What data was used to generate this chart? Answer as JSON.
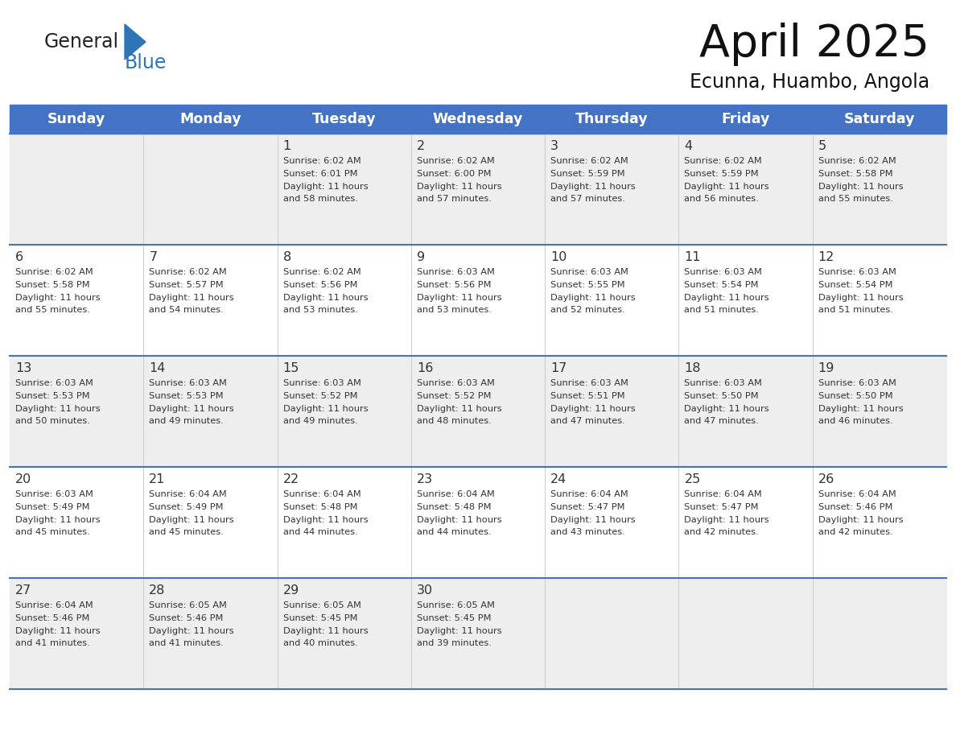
{
  "title": "April 2025",
  "subtitle": "Ecunna, Huambo, Angola",
  "days_of_week": [
    "Sunday",
    "Monday",
    "Tuesday",
    "Wednesday",
    "Thursday",
    "Friday",
    "Saturday"
  ],
  "header_bg": "#4472C4",
  "header_text": "#FFFFFF",
  "cell_bg_odd": "#EEEEEE",
  "cell_bg_even": "#FFFFFF",
  "text_color": "#333333",
  "line_color": "#4472C4",
  "logo_general_color": "#222222",
  "logo_blue_color": "#2E75B6",
  "calendar_data": [
    [
      {
        "day": "",
        "sunrise": "",
        "sunset": "",
        "daylight": ""
      },
      {
        "day": "",
        "sunrise": "",
        "sunset": "",
        "daylight": ""
      },
      {
        "day": "1",
        "sunrise": "6:02 AM",
        "sunset": "6:01 PM",
        "daylight": "11 hours and 58 minutes."
      },
      {
        "day": "2",
        "sunrise": "6:02 AM",
        "sunset": "6:00 PM",
        "daylight": "11 hours and 57 minutes."
      },
      {
        "day": "3",
        "sunrise": "6:02 AM",
        "sunset": "5:59 PM",
        "daylight": "11 hours and 57 minutes."
      },
      {
        "day": "4",
        "sunrise": "6:02 AM",
        "sunset": "5:59 PM",
        "daylight": "11 hours and 56 minutes."
      },
      {
        "day": "5",
        "sunrise": "6:02 AM",
        "sunset": "5:58 PM",
        "daylight": "11 hours and 55 minutes."
      }
    ],
    [
      {
        "day": "6",
        "sunrise": "6:02 AM",
        "sunset": "5:58 PM",
        "daylight": "11 hours and 55 minutes."
      },
      {
        "day": "7",
        "sunrise": "6:02 AM",
        "sunset": "5:57 PM",
        "daylight": "11 hours and 54 minutes."
      },
      {
        "day": "8",
        "sunrise": "6:02 AM",
        "sunset": "5:56 PM",
        "daylight": "11 hours and 53 minutes."
      },
      {
        "day": "9",
        "sunrise": "6:03 AM",
        "sunset": "5:56 PM",
        "daylight": "11 hours and 53 minutes."
      },
      {
        "day": "10",
        "sunrise": "6:03 AM",
        "sunset": "5:55 PM",
        "daylight": "11 hours and 52 minutes."
      },
      {
        "day": "11",
        "sunrise": "6:03 AM",
        "sunset": "5:54 PM",
        "daylight": "11 hours and 51 minutes."
      },
      {
        "day": "12",
        "sunrise": "6:03 AM",
        "sunset": "5:54 PM",
        "daylight": "11 hours and 51 minutes."
      }
    ],
    [
      {
        "day": "13",
        "sunrise": "6:03 AM",
        "sunset": "5:53 PM",
        "daylight": "11 hours and 50 minutes."
      },
      {
        "day": "14",
        "sunrise": "6:03 AM",
        "sunset": "5:53 PM",
        "daylight": "11 hours and 49 minutes."
      },
      {
        "day": "15",
        "sunrise": "6:03 AM",
        "sunset": "5:52 PM",
        "daylight": "11 hours and 49 minutes."
      },
      {
        "day": "16",
        "sunrise": "6:03 AM",
        "sunset": "5:52 PM",
        "daylight": "11 hours and 48 minutes."
      },
      {
        "day": "17",
        "sunrise": "6:03 AM",
        "sunset": "5:51 PM",
        "daylight": "11 hours and 47 minutes."
      },
      {
        "day": "18",
        "sunrise": "6:03 AM",
        "sunset": "5:50 PM",
        "daylight": "11 hours and 47 minutes."
      },
      {
        "day": "19",
        "sunrise": "6:03 AM",
        "sunset": "5:50 PM",
        "daylight": "11 hours and 46 minutes."
      }
    ],
    [
      {
        "day": "20",
        "sunrise": "6:03 AM",
        "sunset": "5:49 PM",
        "daylight": "11 hours and 45 minutes."
      },
      {
        "day": "21",
        "sunrise": "6:04 AM",
        "sunset": "5:49 PM",
        "daylight": "11 hours and 45 minutes."
      },
      {
        "day": "22",
        "sunrise": "6:04 AM",
        "sunset": "5:48 PM",
        "daylight": "11 hours and 44 minutes."
      },
      {
        "day": "23",
        "sunrise": "6:04 AM",
        "sunset": "5:48 PM",
        "daylight": "11 hours and 44 minutes."
      },
      {
        "day": "24",
        "sunrise": "6:04 AM",
        "sunset": "5:47 PM",
        "daylight": "11 hours and 43 minutes."
      },
      {
        "day": "25",
        "sunrise": "6:04 AM",
        "sunset": "5:47 PM",
        "daylight": "11 hours and 42 minutes."
      },
      {
        "day": "26",
        "sunrise": "6:04 AM",
        "sunset": "5:46 PM",
        "daylight": "11 hours and 42 minutes."
      }
    ],
    [
      {
        "day": "27",
        "sunrise": "6:04 AM",
        "sunset": "5:46 PM",
        "daylight": "11 hours and 41 minutes."
      },
      {
        "day": "28",
        "sunrise": "6:05 AM",
        "sunset": "5:46 PM",
        "daylight": "11 hours and 41 minutes."
      },
      {
        "day": "29",
        "sunrise": "6:05 AM",
        "sunset": "5:45 PM",
        "daylight": "11 hours and 40 minutes."
      },
      {
        "day": "30",
        "sunrise": "6:05 AM",
        "sunset": "5:45 PM",
        "daylight": "11 hours and 39 minutes."
      },
      {
        "day": "",
        "sunrise": "",
        "sunset": "",
        "daylight": ""
      },
      {
        "day": "",
        "sunrise": "",
        "sunset": "",
        "daylight": ""
      },
      {
        "day": "",
        "sunrise": "",
        "sunset": "",
        "daylight": ""
      }
    ]
  ]
}
